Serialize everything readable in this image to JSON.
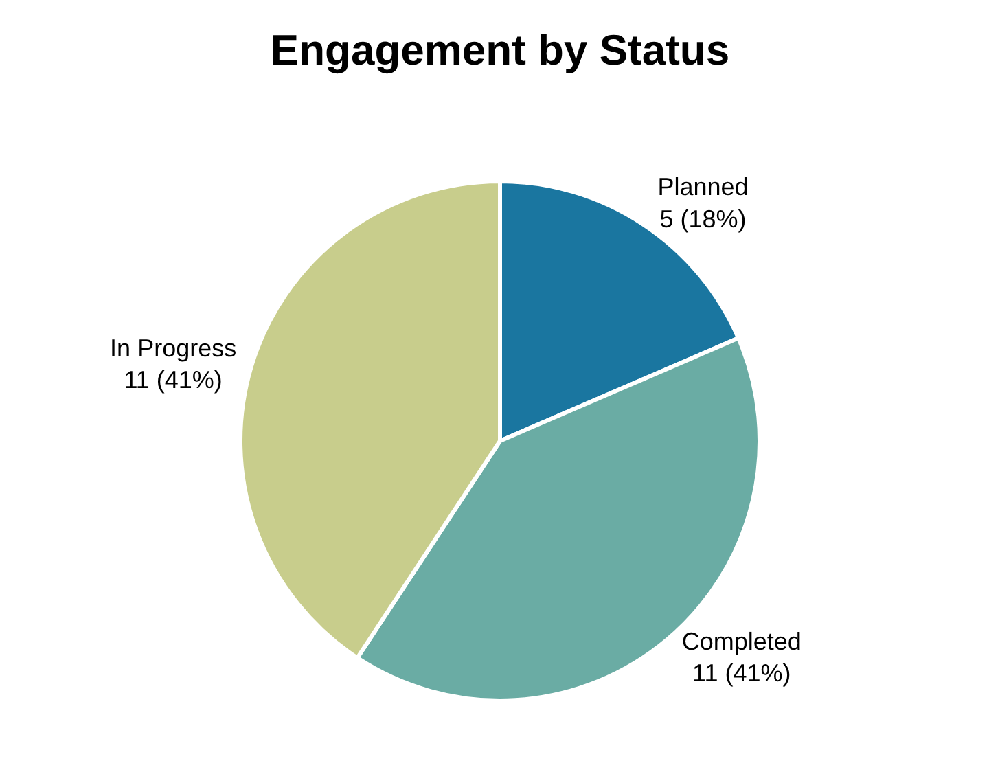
{
  "chart_data": {
    "type": "pie",
    "title": "Engagement by Status",
    "categories": [
      "Planned",
      "Completed",
      "In Progress"
    ],
    "values": [
      5,
      11,
      11
    ],
    "colors": [
      "#1a76a0",
      "#6aaca4",
      "#c8cd8c"
    ],
    "value_labels": [
      "5 (18%)",
      "11 (41%)",
      "11 (41%)"
    ],
    "legend": false
  }
}
